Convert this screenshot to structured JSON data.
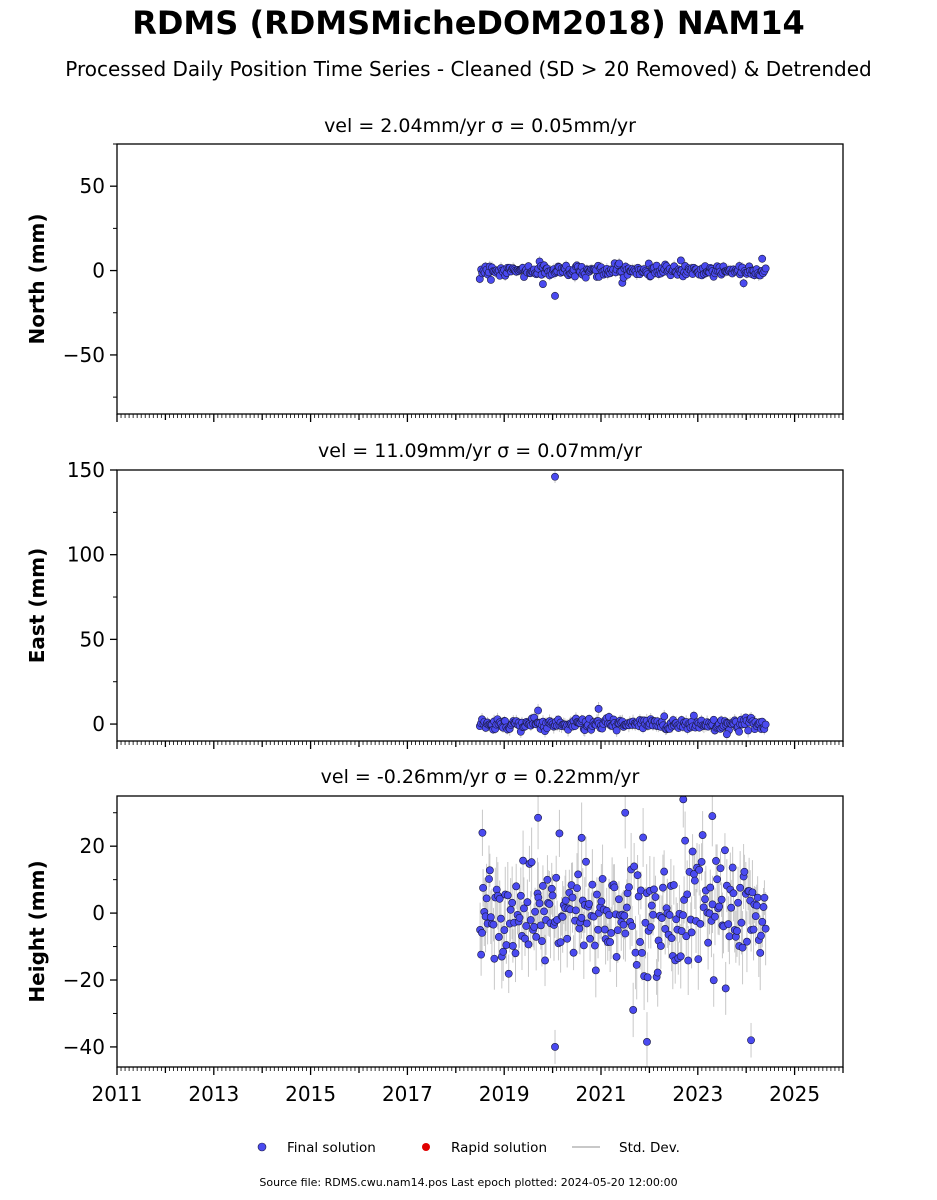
{
  "title": "RDMS (RDMSMicheDOM2018) NAM14",
  "subtitle": "Processed Daily Position Time Series - Cleaned (SD > 20 Removed) & Detrended",
  "footer": "Source file: RDMS.cwu.nam14.pos  Last epoch plotted: 2024-05-20 12:00:00",
  "colors": {
    "final": "#4a4af0",
    "rapid": "#e00000",
    "std": "#c8c8c8"
  },
  "chart_data": [
    {
      "type": "scatter",
      "title": "vel = 2.04mm/yr   σ = 0.05mm/yr",
      "ylabel": "North (mm)",
      "xlim": [
        2011,
        2026
      ],
      "ylim": [
        -85,
        75
      ],
      "yticks": [
        -50,
        0,
        50
      ],
      "ytick_labels": [
        "−50",
        "0",
        "50"
      ],
      "data_range": [
        2018.5,
        2024.4
      ],
      "spread": 1.8,
      "err": 2.5,
      "outliers": [
        {
          "x": 2020.05,
          "y": -15
        },
        {
          "x": 2022.65,
          "y": 6
        },
        {
          "x": 2024.33,
          "y": 7
        },
        {
          "x": 2019.8,
          "y": -8
        }
      ]
    },
    {
      "type": "scatter",
      "title": "vel = 11.09mm/yr   σ = 0.07mm/yr",
      "ylabel": "East (mm)",
      "xlim": [
        2011,
        2026
      ],
      "ylim": [
        -10,
        150
      ],
      "yticks": [
        0,
        50,
        100,
        150
      ],
      "ytick_labels": [
        "0",
        "50",
        "100",
        "150"
      ],
      "data_range": [
        2018.5,
        2024.4
      ],
      "spread": 1.8,
      "err": 3.0,
      "outliers": [
        {
          "x": 2020.05,
          "y": 146
        },
        {
          "x": 2019.7,
          "y": 8
        },
        {
          "x": 2020.95,
          "y": 9
        },
        {
          "x": 2023.6,
          "y": -6
        }
      ]
    },
    {
      "type": "scatter",
      "title": "vel = -0.26mm/yr   σ = 0.22mm/yr",
      "ylabel": "Height (mm)",
      "xlim": [
        2011,
        2026
      ],
      "ylim": [
        -46,
        35
      ],
      "yticks": [
        -40,
        -20,
        0,
        20
      ],
      "ytick_labels": [
        "−40",
        "−20",
        "0",
        "20"
      ],
      "xticks": [
        2011,
        2013,
        2015,
        2017,
        2019,
        2021,
        2023,
        2025
      ],
      "data_range": [
        2018.5,
        2024.4
      ],
      "spread": 7.5,
      "err": 8.0,
      "outliers": [
        {
          "x": 2020.05,
          "y": -40
        },
        {
          "x": 2021.95,
          "y": -38.5
        },
        {
          "x": 2024.1,
          "y": -38
        },
        {
          "x": 2022.7,
          "y": 34
        },
        {
          "x": 2021.5,
          "y": 30
        },
        {
          "x": 2023.3,
          "y": 29
        },
        {
          "x": 2019.7,
          "y": 28.5
        },
        {
          "x": 2018.55,
          "y": 24
        },
        {
          "x": 2020.6,
          "y": 22.5
        }
      ]
    }
  ],
  "legend": [
    {
      "label": "Final solution",
      "kind": "final"
    },
    {
      "label": "Rapid solution",
      "kind": "rapid"
    },
    {
      "label": "Std. Dev.",
      "kind": "std"
    }
  ]
}
